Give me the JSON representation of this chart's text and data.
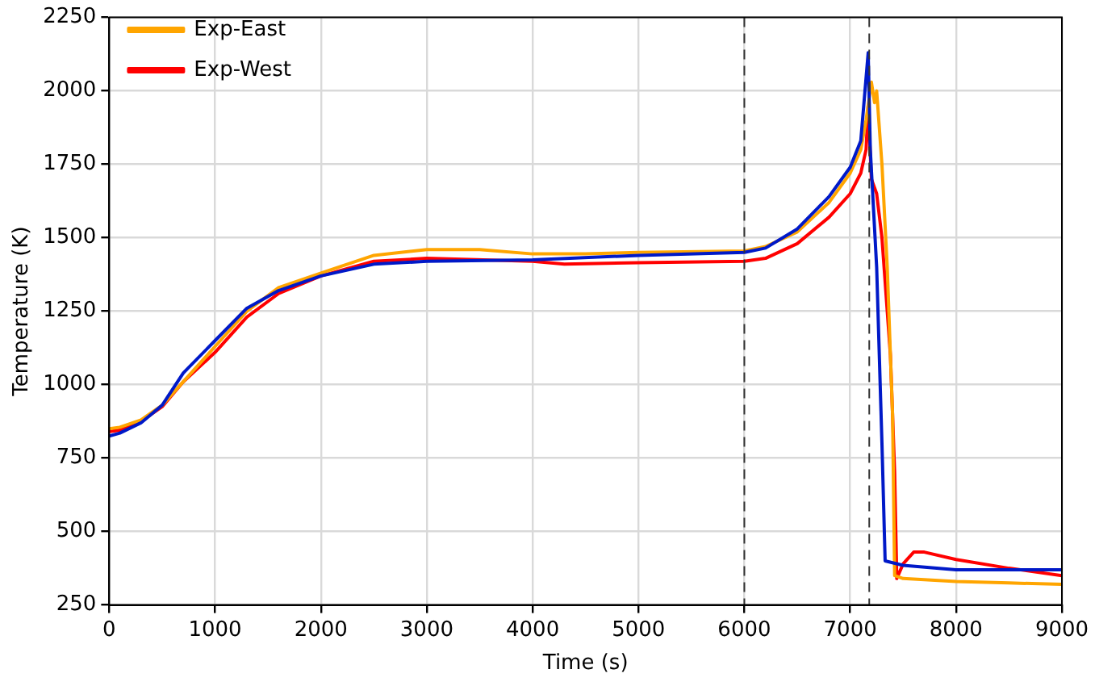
{
  "chart_data": {
    "type": "line",
    "xlabel": "Time (s)",
    "ylabel": "Temperature (K)",
    "xlim": [
      0,
      9000
    ],
    "xticks": [
      0,
      1000,
      2000,
      3000,
      4000,
      5000,
      6000,
      7000,
      8000,
      9000
    ],
    "ylim": [
      250,
      2250
    ],
    "yticks": [
      250,
      500,
      750,
      1000,
      1250,
      1500,
      1750,
      2000,
      2250
    ],
    "grid": true,
    "legend": "top left",
    "marker": "none",
    "line_style": "solid",
    "ref_lines": [
      {
        "axis": "x",
        "value": 6000,
        "color": "#333333",
        "line_style": "dashed"
      },
      {
        "axis": "x",
        "value": 7180,
        "color": "#333333",
        "line_style": "dashed"
      }
    ],
    "series": [
      {
        "color": "#0019c8",
        "x": [
          0,
          100,
          300,
          500,
          700,
          1000,
          1300,
          1600,
          2000,
          2500,
          3000,
          4000,
          5000,
          6000,
          6200,
          6500,
          6800,
          7000,
          7100,
          7170,
          7190,
          7250,
          7300,
          7330,
          7500,
          8000,
          9000
        ],
        "values": [
          825,
          835,
          870,
          930,
          1040,
          1150,
          1260,
          1320,
          1370,
          1410,
          1420,
          1425,
          1440,
          1450,
          1465,
          1530,
          1640,
          1740,
          1830,
          2130,
          1800,
          1400,
          800,
          400,
          385,
          370,
          370
        ]
      },
      {
        "name": "Exp-East",
        "color": "#ffa500",
        "x": [
          0,
          100,
          300,
          500,
          700,
          1000,
          1300,
          1600,
          2000,
          2500,
          3000,
          3500,
          4000,
          4500,
          5000,
          6000,
          6200,
          6500,
          6800,
          7000,
          7100,
          7150,
          7200,
          7230,
          7250,
          7300,
          7350,
          7400,
          7420,
          7500,
          8000,
          8500,
          9000
        ],
        "values": [
          850,
          855,
          880,
          930,
          1010,
          1130,
          1250,
          1330,
          1380,
          1440,
          1460,
          1460,
          1445,
          1445,
          1450,
          1455,
          1470,
          1520,
          1620,
          1720,
          1800,
          1900,
          2030,
          1960,
          2000,
          1750,
          1400,
          900,
          350,
          340,
          330,
          325,
          320
        ]
      },
      {
        "name": "Exp-West",
        "color": "#ff0000",
        "x": [
          0,
          100,
          300,
          500,
          700,
          1000,
          1300,
          1600,
          2000,
          2500,
          3000,
          4000,
          4300,
          5000,
          6000,
          6200,
          6500,
          6800,
          7000,
          7100,
          7150,
          7170,
          7200,
          7250,
          7300,
          7380,
          7420,
          7440,
          7500,
          7600,
          7700,
          8000,
          8500,
          9000
        ],
        "values": [
          840,
          845,
          875,
          925,
          1010,
          1110,
          1230,
          1310,
          1370,
          1420,
          1430,
          1420,
          1410,
          1415,
          1420,
          1430,
          1480,
          1570,
          1650,
          1720,
          1800,
          1950,
          1700,
          1650,
          1500,
          1100,
          700,
          340,
          390,
          430,
          430,
          405,
          375,
          350
        ]
      }
    ]
  }
}
